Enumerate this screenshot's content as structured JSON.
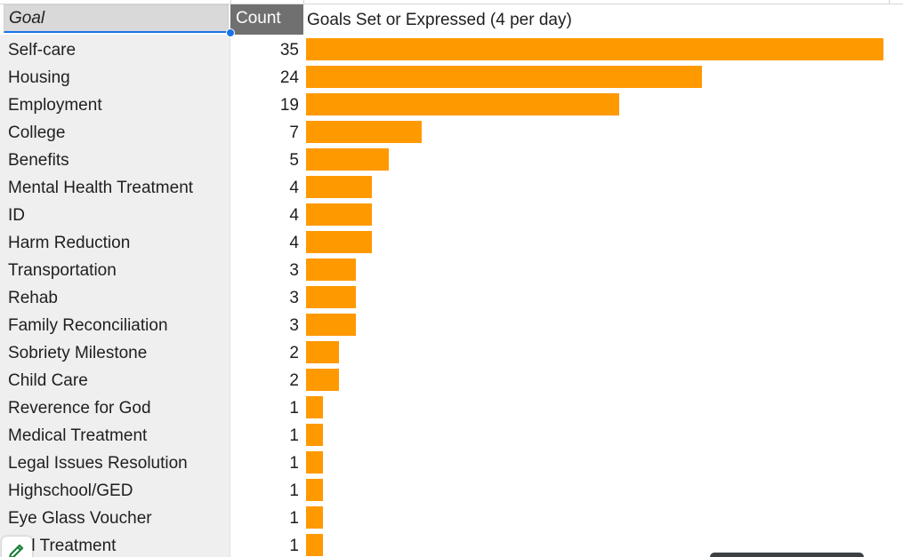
{
  "sheet": {
    "header": {
      "goal_label": "Goal",
      "count_label": "Count"
    },
    "rows": [
      {
        "goal": "Self-care",
        "count": "35"
      },
      {
        "goal": "Housing",
        "count": "24"
      },
      {
        "goal": "Employment",
        "count": "19"
      },
      {
        "goal": "College",
        "count": "7"
      },
      {
        "goal": "Benefits",
        "count": "5"
      },
      {
        "goal": "Mental Health Treatment",
        "count": "4"
      },
      {
        "goal": "ID",
        "count": "4"
      },
      {
        "goal": "Harm Reduction",
        "count": "4"
      },
      {
        "goal": "Transportation",
        "count": "3"
      },
      {
        "goal": "Rehab",
        "count": "3"
      },
      {
        "goal": "Family Reconciliation",
        "count": "3"
      },
      {
        "goal": "Sobriety Milestone",
        "count": "2"
      },
      {
        "goal": "Child Care",
        "count": "2"
      },
      {
        "goal": "Reverence for God",
        "count": "1"
      },
      {
        "goal": "Medical Treatment",
        "count": "1"
      },
      {
        "goal": "Legal Issues Resolution",
        "count": "1"
      },
      {
        "goal": "Highschool/GED",
        "count": "1"
      },
      {
        "goal": "Eye Glass Voucher",
        "count": "1"
      },
      {
        "goal": "ntal Treatment",
        "count": "1"
      }
    ]
  },
  "chart_data": {
    "type": "bar",
    "title": "Goals Set or Expressed (4 per day)",
    "orientation": "horizontal",
    "categories": [
      "Self-care",
      "Housing",
      "Employment",
      "College",
      "Benefits",
      "Mental Health Treatment",
      "ID",
      "Harm Reduction",
      "Transportation",
      "Rehab",
      "Family Reconciliation",
      "Sobriety Milestone",
      "Child Care",
      "Reverence for God",
      "Medical Treatment",
      "Legal Issues Resolution",
      "Highschool/GED",
      "Eye Glass Voucher",
      "ntal Treatment"
    ],
    "values": [
      35,
      24,
      19,
      7,
      5,
      4,
      4,
      4,
      3,
      3,
      3,
      2,
      2,
      1,
      1,
      1,
      1,
      1,
      1
    ],
    "bar_color": "#ff9900",
    "xlim": [
      0,
      35
    ],
    "grid": false
  },
  "colors": {
    "header_count_bg": "#707070",
    "selection_blue": "#1a73e8",
    "column_a_bg": "#efefef"
  },
  "icons": {
    "edit": "pencil-icon"
  }
}
